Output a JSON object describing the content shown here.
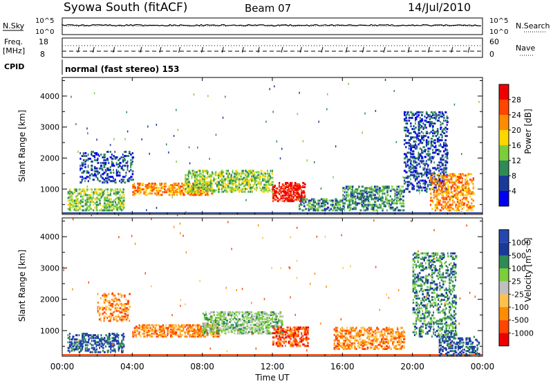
{
  "header": {
    "station": "Syowa South (fitACF)",
    "beam": "Beam 07",
    "date": "14/Jul/2010"
  },
  "noise_panel": {
    "left_label": "N.Sky",
    "right_label": "N.Search",
    "top_tick": "10^5",
    "bottom_tick": "10^0"
  },
  "freq_panel": {
    "left_label_line1": "Freq.",
    "left_label_line2": "[MHz]",
    "left_ticks": [
      "18",
      "8"
    ],
    "right_ticks": [
      "60",
      "0"
    ],
    "right_label": "Nave"
  },
  "cpid_panel": {
    "label": "CPID",
    "text": "normal (fast stereo) 153"
  },
  "colors": {
    "power": [
      "#0000ee",
      "#1a3a9a",
      "#2e8b57",
      "#7ccd3c",
      "#ffd700",
      "#ff8c00",
      "#ff4500",
      "#ee0000"
    ],
    "velocity": [
      "#ee0000",
      "#ff4500",
      "#ff8c00",
      "#ffc04d",
      "#c0c0c0",
      "#7ccd3c",
      "#2e8b57",
      "#1a3a9a",
      "#2547b0"
    ]
  },
  "chart_data": [
    {
      "type": "heatmap",
      "name": "power",
      "ylabel": "Slant Range [km]",
      "yticks": [
        "1000",
        "2000",
        "3000",
        "4000"
      ],
      "ylim": [
        180,
        4600
      ],
      "colorbar_label": "Power [dB]",
      "colorbar_ticks": [
        "4",
        "8",
        "12",
        "16",
        "20",
        "24",
        "28"
      ],
      "colorbar_range": [
        0,
        32
      ],
      "regions": [
        {
          "t0": 0.3,
          "t1": 3.5,
          "r0": 300,
          "r1": 1000,
          "level": 3,
          "density": 0.5
        },
        {
          "t0": 1.0,
          "t1": 4.0,
          "r0": 1200,
          "r1": 2200,
          "level": 1,
          "density": 0.3
        },
        {
          "t0": 4.0,
          "t1": 8.5,
          "r0": 800,
          "r1": 1200,
          "level": 5,
          "density": 0.55
        },
        {
          "t0": 7.0,
          "t1": 12.0,
          "r0": 900,
          "r1": 1600,
          "level": 3,
          "density": 0.5
        },
        {
          "t0": 12.0,
          "t1": 13.8,
          "r0": 600,
          "r1": 1200,
          "level": 7,
          "density": 0.6
        },
        {
          "t0": 13.5,
          "t1": 16.0,
          "r0": 300,
          "r1": 700,
          "level": 2,
          "density": 0.45
        },
        {
          "t0": 16.0,
          "t1": 19.5,
          "r0": 300,
          "r1": 1100,
          "level": 2,
          "density": 0.45
        },
        {
          "t0": 19.5,
          "t1": 22.0,
          "r0": 900,
          "r1": 3500,
          "level": 1,
          "density": 0.35
        },
        {
          "t0": 21.0,
          "t1": 23.5,
          "r0": 300,
          "r1": 1500,
          "level": 5,
          "density": 0.4
        }
      ]
    },
    {
      "type": "heatmap",
      "name": "velocity",
      "xlabel": "Time UT",
      "xticks": [
        "00:00",
        "04:00",
        "08:00",
        "12:00",
        "16:00",
        "20:00",
        "00:00"
      ],
      "ylabel": "Slant Range [km]",
      "yticks": [
        "1000",
        "2000",
        "3000",
        "4000"
      ],
      "ylim": [
        180,
        4600
      ],
      "colorbar_label": "Velocity [m s⁻¹]",
      "colorbar_ticks": [
        "-1000",
        "-500",
        "-100",
        "-25",
        "25",
        "100",
        "500",
        "1000"
      ],
      "regions": [
        {
          "t0": 0.3,
          "t1": 3.5,
          "r0": 300,
          "r1": 900,
          "level": 7,
          "density": 0.5
        },
        {
          "t0": 2.0,
          "t1": 3.8,
          "r0": 1300,
          "r1": 2200,
          "level": 2,
          "density": 0.35
        },
        {
          "t0": 4.0,
          "t1": 9.0,
          "r0": 800,
          "r1": 1200,
          "level": 2,
          "density": 0.55
        },
        {
          "t0": 8.0,
          "t1": 12.5,
          "r0": 900,
          "r1": 1600,
          "level": 5,
          "density": 0.5
        },
        {
          "t0": 12.0,
          "t1": 14.0,
          "r0": 500,
          "r1": 1100,
          "level": 1,
          "density": 0.5
        },
        {
          "t0": 15.5,
          "t1": 19.5,
          "r0": 400,
          "r1": 1100,
          "level": 2,
          "density": 0.5
        },
        {
          "t0": 20.0,
          "t1": 22.5,
          "r0": 800,
          "r1": 3500,
          "level": 6,
          "density": 0.35
        },
        {
          "t0": 21.5,
          "t1": 23.8,
          "r0": 200,
          "r1": 800,
          "level": 7,
          "density": 0.4
        }
      ]
    }
  ]
}
